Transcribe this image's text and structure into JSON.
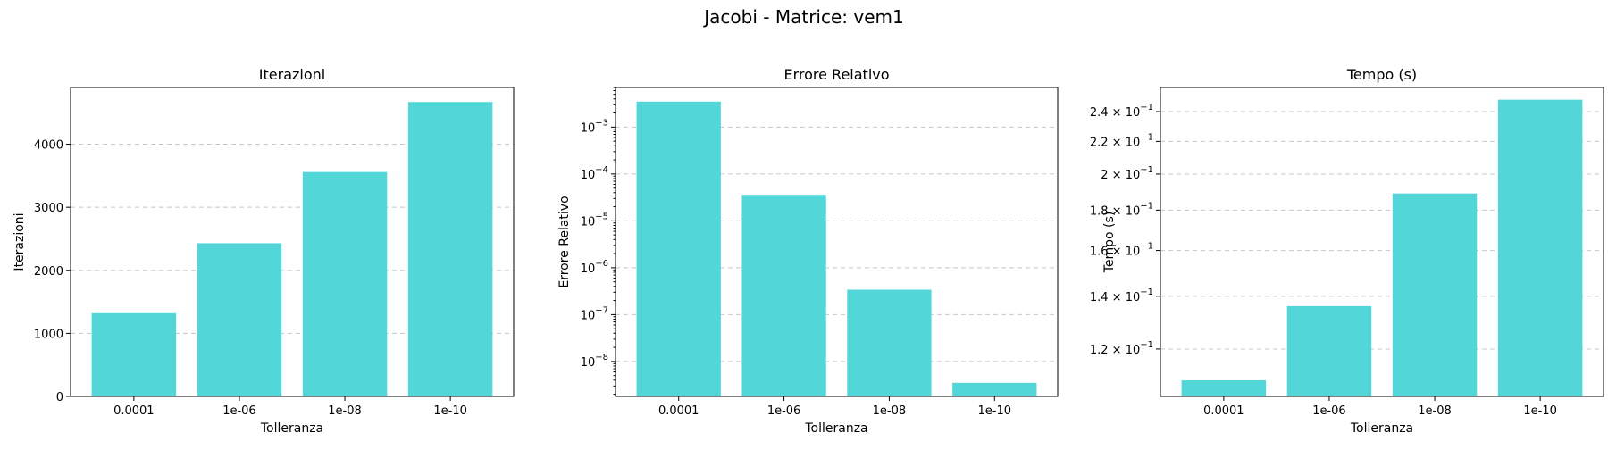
{
  "chart_data": {
    "title": "Jacobi - Matrice: vem1",
    "categories": [
      "0.0001",
      "1e-06",
      "1e-08",
      "1e-10"
    ],
    "color": "#52d6d8",
    "grid": "y",
    "panels": [
      {
        "type": "bar",
        "title": "Iterazioni",
        "xlabel": "Tolleranza",
        "ylabel": "Iterazioni",
        "yscale": "linear",
        "ylim": [
          0,
          4900
        ],
        "values": [
          1320,
          2430,
          3560,
          4670
        ],
        "yticks": [
          {
            "value": 0,
            "label": "0"
          },
          {
            "value": 1000,
            "label": "1000"
          },
          {
            "value": 2000,
            "label": "2000"
          },
          {
            "value": 3000,
            "label": "3000"
          },
          {
            "value": 4000,
            "label": "4000"
          }
        ]
      },
      {
        "type": "bar",
        "title": "Errore Relativo",
        "xlabel": "Tolleranza",
        "ylabel": "Errore Relativo",
        "yscale": "log",
        "ylim": [
          1.8e-09,
          0.007
        ],
        "values": [
          0.0035,
          3.6e-05,
          3.4e-07,
          3.5e-09
        ],
        "yticks": [
          {
            "value": 1e-08,
            "base": "10",
            "exp": "−8"
          },
          {
            "value": 1e-07,
            "base": "10",
            "exp": "−7"
          },
          {
            "value": 1e-06,
            "base": "10",
            "exp": "−6"
          },
          {
            "value": 1e-05,
            "base": "10",
            "exp": "−5"
          },
          {
            "value": 0.0001,
            "base": "10",
            "exp": "−4"
          },
          {
            "value": 0.001,
            "base": "10",
            "exp": "−3"
          }
        ]
      },
      {
        "type": "bar",
        "title": "Tempo (s)",
        "xlabel": "Tolleranza",
        "ylabel": "Tempo (s)",
        "yscale": "log",
        "ylim": [
          0.1045,
          0.2575
        ],
        "values": [
          0.1095,
          0.136,
          0.189,
          0.2485
        ],
        "yticks": [
          {
            "value": 0.12,
            "base": "1.2 × 10",
            "exp": "−1"
          },
          {
            "value": 0.14,
            "base": "1.4 × 10",
            "exp": "−1"
          },
          {
            "value": 0.16,
            "base": "1.6 × 10",
            "exp": "−1"
          },
          {
            "value": 0.18,
            "base": "1.8 × 10",
            "exp": "−1"
          },
          {
            "value": 0.2,
            "base": "2 × 10",
            "exp": "−1"
          },
          {
            "value": 0.22,
            "base": "2.2 × 10",
            "exp": "−1"
          },
          {
            "value": 0.24,
            "base": "2.4 × 10",
            "exp": "−1"
          }
        ]
      }
    ]
  }
}
